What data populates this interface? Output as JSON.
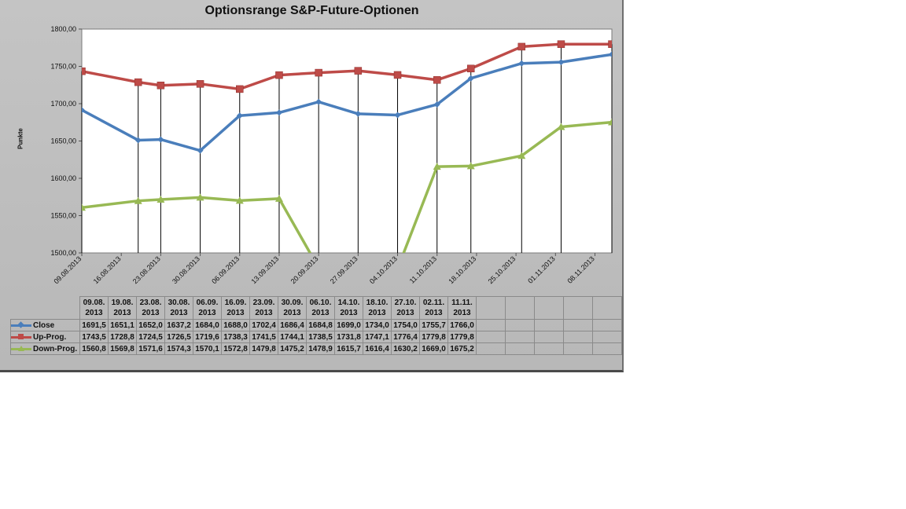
{
  "chart_data": {
    "type": "line",
    "title": "Optionsrange S&P-Future-Optionen",
    "ylabel": "Punkte",
    "xlabel": "",
    "ylim": [
      1500,
      1800
    ],
    "yticks": [
      "1500,00",
      "1550,00",
      "1600,00",
      "1650,00",
      "1700,00",
      "1750,00",
      "1800,00"
    ],
    "xtick_labels": [
      "09.08.2013",
      "16.08.2013",
      "23.08.2013",
      "30.08.2013",
      "06.09.2013",
      "13.09.2013",
      "20.09.2013",
      "27.09.2013",
      "04.10.2013",
      "11.10.2013",
      "18.10.2013",
      "25.10.2013",
      "01.11.2013",
      "08.11.2013"
    ],
    "xtick_days": [
      0,
      7,
      14,
      21,
      28,
      35,
      42,
      49,
      56,
      63,
      70,
      77,
      84,
      91
    ],
    "x_days": [
      0,
      10,
      14,
      21,
      28,
      35,
      42,
      49,
      56,
      63,
      69,
      78,
      85,
      94
    ],
    "dates": [
      [
        "09.08.",
        "2013"
      ],
      [
        "19.08.",
        "2013"
      ],
      [
        "23.08.",
        "2013"
      ],
      [
        "30.08.",
        "2013"
      ],
      [
        "06.09.",
        "2013"
      ],
      [
        "16.09.",
        "2013"
      ],
      [
        "23.09.",
        "2013"
      ],
      [
        "30.09.",
        "2013"
      ],
      [
        "06.10.",
        "2013"
      ],
      [
        "14.10.",
        "2013"
      ],
      [
        "18.10.",
        "2013"
      ],
      [
        "27.10.",
        "2013"
      ],
      [
        "02.11.",
        "2013"
      ],
      [
        "11.11.",
        "2013"
      ]
    ],
    "series": [
      {
        "name": "Close",
        "color": "#4a7ebb",
        "marker": "diamond",
        "values": [
          1691.5,
          1651.1,
          1652.0,
          1637.2,
          1684.0,
          1688.0,
          1702.4,
          1686.4,
          1684.8,
          1699.0,
          1734.0,
          1754.0,
          1755.7,
          1766.0
        ],
        "labels": [
          "1691,5",
          "1651,1",
          "1652,0",
          "1637,2",
          "1684,0",
          "1688,0",
          "1702,4",
          "1686,4",
          "1684,8",
          "1699,0",
          "1734,0",
          "1754,0",
          "1755,7",
          "1766,0"
        ]
      },
      {
        "name": "Up-Prog.",
        "color": "#be4b48",
        "marker": "square",
        "values": [
          1743.5,
          1728.8,
          1724.5,
          1726.5,
          1719.6,
          1738.3,
          1741.5,
          1744.1,
          1738.5,
          1731.8,
          1747.1,
          1776.4,
          1779.8,
          1779.8
        ],
        "labels": [
          "1743,5",
          "1728,8",
          "1724,5",
          "1726,5",
          "1719,6",
          "1738,3",
          "1741,5",
          "1744,1",
          "1738,5",
          "1731,8",
          "1747,1",
          "1776,4",
          "1779,8",
          "1779,8"
        ]
      },
      {
        "name": "Down-Prog.",
        "color": "#98b954",
        "marker": "triangle",
        "values": [
          1560.8,
          1569.8,
          1571.6,
          1574.3,
          1570.1,
          1572.8,
          1479.8,
          1475.2,
          1478.9,
          1615.7,
          1616.4,
          1630.2,
          1669.0,
          1675.2
        ],
        "labels": [
          "1560,8",
          "1569,8",
          "1571,6",
          "1574,3",
          "1570,1",
          "1572,8",
          "1479,8",
          "1475,2",
          "1478,9",
          "1615,7",
          "1616,4",
          "1630,2",
          "1669,0",
          "1675,2"
        ]
      }
    ],
    "empty_columns": 5
  }
}
